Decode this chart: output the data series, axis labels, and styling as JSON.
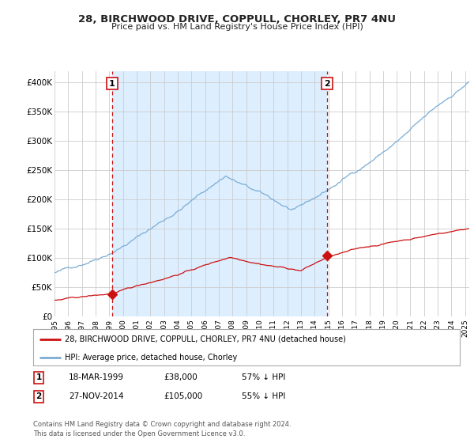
{
  "title1": "28, BIRCHWOOD DRIVE, COPPULL, CHORLEY, PR7 4NU",
  "title2": "Price paid vs. HM Land Registry's House Price Index (HPI)",
  "xlim_start": 1995.0,
  "xlim_end": 2025.3,
  "ylim_min": 0,
  "ylim_max": 420000,
  "hpi_color": "#7aadd4",
  "hpi_fill_color": "#ddeeff",
  "price_color": "#cc1111",
  "dashed_color": "#cc1111",
  "sale1_date": 1999.21,
  "sale1_price": 38000,
  "sale1_label": "1",
  "sale2_date": 2014.91,
  "sale2_price": 105000,
  "sale2_label": "2",
  "legend_line1": "28, BIRCHWOOD DRIVE, COPPULL, CHORLEY, PR7 4NU (detached house)",
  "legend_line2": "HPI: Average price, detached house, Chorley",
  "table_row1": [
    "1",
    "18-MAR-1999",
    "£38,000",
    "57% ↓ HPI"
  ],
  "table_row2": [
    "2",
    "27-NOV-2014",
    "£105,000",
    "55% ↓ HPI"
  ],
  "footer": "Contains HM Land Registry data © Crown copyright and database right 2024.\nThis data is licensed under the Open Government Licence v3.0.",
  "background_color": "#ffffff",
  "grid_color": "#cccccc"
}
